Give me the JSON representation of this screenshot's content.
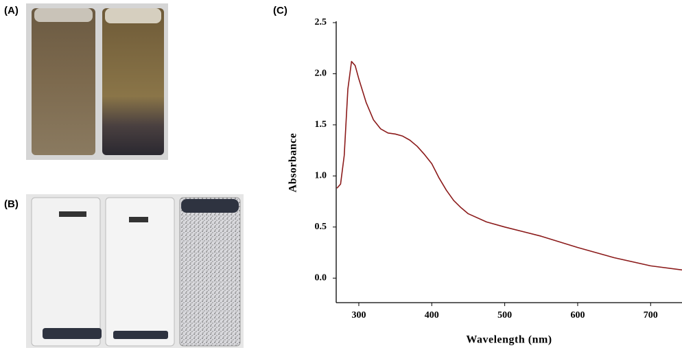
{
  "chart_data": {
    "type": "line",
    "panel_labels": [
      "(A)",
      "(B)",
      "(C)"
    ],
    "xlabel": "Wavelength (nm)",
    "ylabel": "Absorbance",
    "x": [
      270,
      275,
      280,
      285,
      290,
      295,
      300,
      310,
      320,
      330,
      340,
      350,
      360,
      370,
      380,
      390,
      400,
      410,
      420,
      430,
      440,
      450,
      475,
      500,
      550,
      600,
      650,
      700,
      743
    ],
    "values": [
      0.88,
      0.92,
      1.2,
      1.85,
      2.12,
      2.08,
      1.95,
      1.72,
      1.55,
      1.46,
      1.42,
      1.41,
      1.39,
      1.35,
      1.29,
      1.21,
      1.12,
      0.98,
      0.86,
      0.76,
      0.69,
      0.63,
      0.55,
      0.5,
      0.41,
      0.3,
      0.2,
      0.12,
      0.08
    ],
    "color": "#8b1a1a",
    "xlim": [
      269,
      743
    ],
    "xticks": [
      300,
      400,
      500,
      600,
      700
    ],
    "ylim": [
      -0.24,
      2.5
    ],
    "yticks": [
      {
        "value": 0,
        "label": "0.0"
      },
      0.5,
      {
        "value": 1,
        "label": "1.0"
      },
      1.5,
      {
        "value": 2,
        "label": "2.0"
      },
      2.5
    ]
  }
}
